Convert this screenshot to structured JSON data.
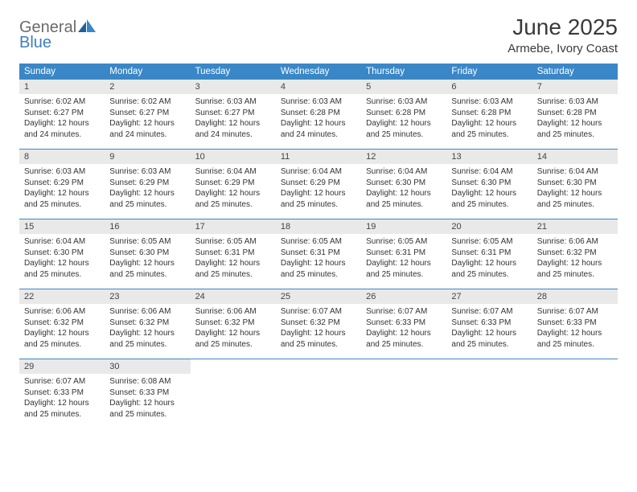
{
  "logo": {
    "general": "General",
    "blue": "Blue"
  },
  "title": "June 2025",
  "location": "Armebe, Ivory Coast",
  "colors": {
    "header_bg": "#3a87c7",
    "header_text": "#ffffff",
    "daynum_bg": "#e9e9e9",
    "row_border": "#3a87c7",
    "logo_gray": "#6a6a6a",
    "logo_blue": "#3a7fc4"
  },
  "dayHeaders": [
    "Sunday",
    "Monday",
    "Tuesday",
    "Wednesday",
    "Thursday",
    "Friday",
    "Saturday"
  ],
  "weeks": [
    [
      {
        "n": "1",
        "sr": "Sunrise: 6:02 AM",
        "ss": "Sunset: 6:27 PM",
        "d1": "Daylight: 12 hours",
        "d2": "and 24 minutes."
      },
      {
        "n": "2",
        "sr": "Sunrise: 6:02 AM",
        "ss": "Sunset: 6:27 PM",
        "d1": "Daylight: 12 hours",
        "d2": "and 24 minutes."
      },
      {
        "n": "3",
        "sr": "Sunrise: 6:03 AM",
        "ss": "Sunset: 6:27 PM",
        "d1": "Daylight: 12 hours",
        "d2": "and 24 minutes."
      },
      {
        "n": "4",
        "sr": "Sunrise: 6:03 AM",
        "ss": "Sunset: 6:28 PM",
        "d1": "Daylight: 12 hours",
        "d2": "and 24 minutes."
      },
      {
        "n": "5",
        "sr": "Sunrise: 6:03 AM",
        "ss": "Sunset: 6:28 PM",
        "d1": "Daylight: 12 hours",
        "d2": "and 25 minutes."
      },
      {
        "n": "6",
        "sr": "Sunrise: 6:03 AM",
        "ss": "Sunset: 6:28 PM",
        "d1": "Daylight: 12 hours",
        "d2": "and 25 minutes."
      },
      {
        "n": "7",
        "sr": "Sunrise: 6:03 AM",
        "ss": "Sunset: 6:28 PM",
        "d1": "Daylight: 12 hours",
        "d2": "and 25 minutes."
      }
    ],
    [
      {
        "n": "8",
        "sr": "Sunrise: 6:03 AM",
        "ss": "Sunset: 6:29 PM",
        "d1": "Daylight: 12 hours",
        "d2": "and 25 minutes."
      },
      {
        "n": "9",
        "sr": "Sunrise: 6:03 AM",
        "ss": "Sunset: 6:29 PM",
        "d1": "Daylight: 12 hours",
        "d2": "and 25 minutes."
      },
      {
        "n": "10",
        "sr": "Sunrise: 6:04 AM",
        "ss": "Sunset: 6:29 PM",
        "d1": "Daylight: 12 hours",
        "d2": "and 25 minutes."
      },
      {
        "n": "11",
        "sr": "Sunrise: 6:04 AM",
        "ss": "Sunset: 6:29 PM",
        "d1": "Daylight: 12 hours",
        "d2": "and 25 minutes."
      },
      {
        "n": "12",
        "sr": "Sunrise: 6:04 AM",
        "ss": "Sunset: 6:30 PM",
        "d1": "Daylight: 12 hours",
        "d2": "and 25 minutes."
      },
      {
        "n": "13",
        "sr": "Sunrise: 6:04 AM",
        "ss": "Sunset: 6:30 PM",
        "d1": "Daylight: 12 hours",
        "d2": "and 25 minutes."
      },
      {
        "n": "14",
        "sr": "Sunrise: 6:04 AM",
        "ss": "Sunset: 6:30 PM",
        "d1": "Daylight: 12 hours",
        "d2": "and 25 minutes."
      }
    ],
    [
      {
        "n": "15",
        "sr": "Sunrise: 6:04 AM",
        "ss": "Sunset: 6:30 PM",
        "d1": "Daylight: 12 hours",
        "d2": "and 25 minutes."
      },
      {
        "n": "16",
        "sr": "Sunrise: 6:05 AM",
        "ss": "Sunset: 6:30 PM",
        "d1": "Daylight: 12 hours",
        "d2": "and 25 minutes."
      },
      {
        "n": "17",
        "sr": "Sunrise: 6:05 AM",
        "ss": "Sunset: 6:31 PM",
        "d1": "Daylight: 12 hours",
        "d2": "and 25 minutes."
      },
      {
        "n": "18",
        "sr": "Sunrise: 6:05 AM",
        "ss": "Sunset: 6:31 PM",
        "d1": "Daylight: 12 hours",
        "d2": "and 25 minutes."
      },
      {
        "n": "19",
        "sr": "Sunrise: 6:05 AM",
        "ss": "Sunset: 6:31 PM",
        "d1": "Daylight: 12 hours",
        "d2": "and 25 minutes."
      },
      {
        "n": "20",
        "sr": "Sunrise: 6:05 AM",
        "ss": "Sunset: 6:31 PM",
        "d1": "Daylight: 12 hours",
        "d2": "and 25 minutes."
      },
      {
        "n": "21",
        "sr": "Sunrise: 6:06 AM",
        "ss": "Sunset: 6:32 PM",
        "d1": "Daylight: 12 hours",
        "d2": "and 25 minutes."
      }
    ],
    [
      {
        "n": "22",
        "sr": "Sunrise: 6:06 AM",
        "ss": "Sunset: 6:32 PM",
        "d1": "Daylight: 12 hours",
        "d2": "and 25 minutes."
      },
      {
        "n": "23",
        "sr": "Sunrise: 6:06 AM",
        "ss": "Sunset: 6:32 PM",
        "d1": "Daylight: 12 hours",
        "d2": "and 25 minutes."
      },
      {
        "n": "24",
        "sr": "Sunrise: 6:06 AM",
        "ss": "Sunset: 6:32 PM",
        "d1": "Daylight: 12 hours",
        "d2": "and 25 minutes."
      },
      {
        "n": "25",
        "sr": "Sunrise: 6:07 AM",
        "ss": "Sunset: 6:32 PM",
        "d1": "Daylight: 12 hours",
        "d2": "and 25 minutes."
      },
      {
        "n": "26",
        "sr": "Sunrise: 6:07 AM",
        "ss": "Sunset: 6:33 PM",
        "d1": "Daylight: 12 hours",
        "d2": "and 25 minutes."
      },
      {
        "n": "27",
        "sr": "Sunrise: 6:07 AM",
        "ss": "Sunset: 6:33 PM",
        "d1": "Daylight: 12 hours",
        "d2": "and 25 minutes."
      },
      {
        "n": "28",
        "sr": "Sunrise: 6:07 AM",
        "ss": "Sunset: 6:33 PM",
        "d1": "Daylight: 12 hours",
        "d2": "and 25 minutes."
      }
    ],
    [
      {
        "n": "29",
        "sr": "Sunrise: 6:07 AM",
        "ss": "Sunset: 6:33 PM",
        "d1": "Daylight: 12 hours",
        "d2": "and 25 minutes."
      },
      {
        "n": "30",
        "sr": "Sunrise: 6:08 AM",
        "ss": "Sunset: 6:33 PM",
        "d1": "Daylight: 12 hours",
        "d2": "and 25 minutes."
      },
      null,
      null,
      null,
      null,
      null
    ]
  ]
}
